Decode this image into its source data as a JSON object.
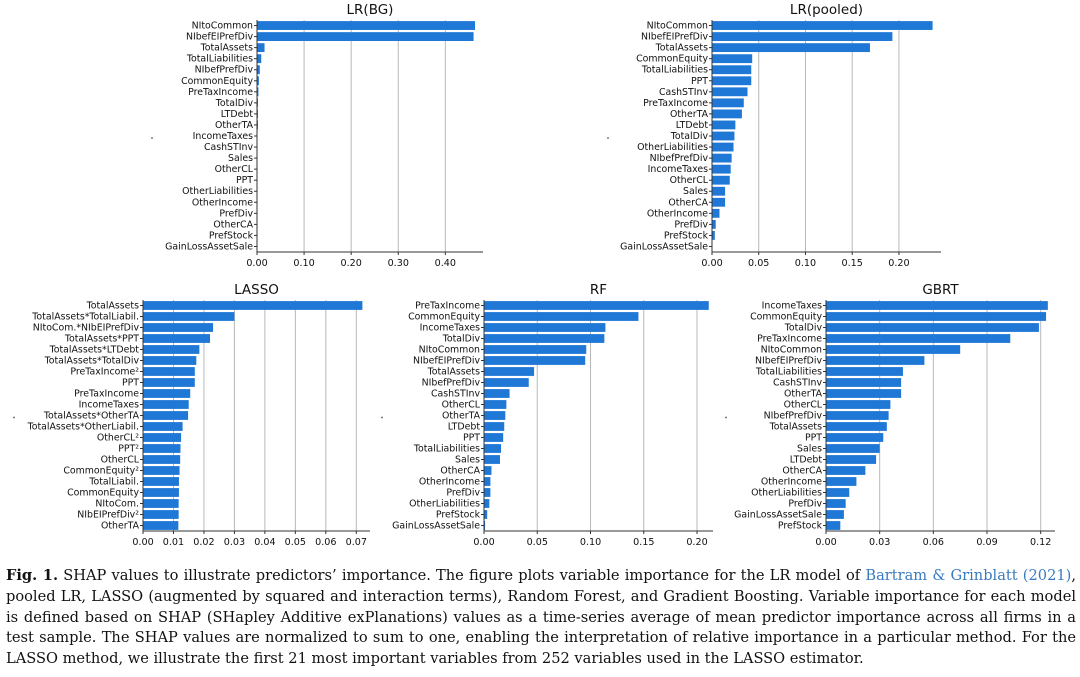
{
  "chart_data": [
    {
      "type": "bar",
      "orientation": "horizontal",
      "title": "LR(BG)",
      "categories": [
        "NItoCommon",
        "NIbefEIPrefDiv",
        "TotalAssets",
        "TotalLiabilities",
        "NIbefPrefDiv",
        "CommonEquity",
        "PreTaxIncome",
        "TotalDiv",
        "LTDebt",
        "OtherTA",
        "IncomeTaxes",
        "CashSTInv",
        "Sales",
        "OtherCL",
        "PPT",
        "OtherLiabilities",
        "OtherIncome",
        "PrefDiv",
        "OtherCA",
        "PrefStock",
        "GainLossAssetSale"
      ],
      "values": [
        0.463,
        0.46,
        0.016,
        0.009,
        0.006,
        0.004,
        0.003,
        0.002,
        0.002,
        0.002,
        0.001,
        0.001,
        0.0,
        0.0,
        0.0,
        0.0,
        0.0,
        0.0,
        0.0,
        0.0,
        0.0
      ],
      "xlim": [
        0,
        0.48
      ],
      "xticks": [
        "0.00",
        "0.10",
        "0.20",
        "0.30",
        "0.40"
      ],
      "xtick_values": [
        0,
        0.1,
        0.2,
        0.3,
        0.4
      ]
    },
    {
      "type": "bar",
      "orientation": "horizontal",
      "title": "LR(pooled)",
      "categories": [
        "NItoCommon",
        "NIbefEIPrefDiv",
        "TotalAssets",
        "CommonEquity",
        "TotalLiabilities",
        "PPT",
        "CashSTInv",
        "PreTaxIncome",
        "OtherTA",
        "LTDebt",
        "TotalDiv",
        "OtherLiabilities",
        "NIbefPrefDiv",
        "IncomeTaxes",
        "OtherCL",
        "Sales",
        "OtherCA",
        "OtherIncome",
        "PrefDiv",
        "PrefStock",
        "GainLossAssetSale"
      ],
      "values": [
        0.236,
        0.193,
        0.169,
        0.043,
        0.042,
        0.042,
        0.038,
        0.034,
        0.032,
        0.025,
        0.024,
        0.023,
        0.021,
        0.02,
        0.019,
        0.014,
        0.014,
        0.008,
        0.004,
        0.003,
        0.0
      ],
      "xlim": [
        0,
        0.245
      ],
      "xticks": [
        "0.00",
        "0.05",
        "0.10",
        "0.15",
        "0.20"
      ],
      "xtick_values": [
        0,
        0.05,
        0.1,
        0.15,
        0.2
      ]
    },
    {
      "type": "bar",
      "orientation": "horizontal",
      "title": "LASSO",
      "categories": [
        "TotalAssets",
        "TotalAssets*TotalLiabil.",
        "NItoCom.*NIbEIPrefDiv",
        "TotalAssets*PPT",
        "TotalAssets*LTDebt",
        "TotalAssets*TotalDiv",
        "PreTaxIncome²",
        "PPT",
        "PreTaxIncome",
        "IncomeTaxes",
        "TotalAssets*OtherTA",
        "TotalAssets*OtherLiabil.",
        "OtherCL²",
        "PPT²",
        "OtherCL",
        "CommonEquity²",
        "TotalLiabil.",
        "CommonEquity",
        "NItoCom.",
        "NIbEIPrefDiv²",
        "OtherTA"
      ],
      "values": [
        0.072,
        0.03,
        0.023,
        0.022,
        0.0185,
        0.0175,
        0.017,
        0.017,
        0.0155,
        0.015,
        0.0148,
        0.013,
        0.0125,
        0.0123,
        0.0122,
        0.012,
        0.0118,
        0.0118,
        0.0117,
        0.0117,
        0.0116
      ],
      "xlim": [
        0,
        0.0745
      ],
      "xticks": [
        "0.00",
        "0.01",
        "0.02",
        "0.03",
        "0.04",
        "0.05",
        "0.06",
        "0.07"
      ],
      "xtick_values": [
        0,
        0.01,
        0.02,
        0.03,
        0.04,
        0.05,
        0.06,
        0.07
      ]
    },
    {
      "type": "bar",
      "orientation": "horizontal",
      "title": "RF",
      "categories": [
        "PreTaxIncome",
        "CommonEquity",
        "IncomeTaxes",
        "TotalDiv",
        "NItoCommon",
        "NIbefEIPrefDiv",
        "TotalAssets",
        "NIbefPrefDiv",
        "CashSTInv",
        "OtherCL",
        "OtherTA",
        "LTDebt",
        "PPT",
        "TotalLiabilities",
        "Sales",
        "OtherCA",
        "OtherIncome",
        "PrefDiv",
        "OtherLiabilities",
        "PrefStock",
        "GainLossAssetSale"
      ],
      "values": [
        0.211,
        0.145,
        0.114,
        0.113,
        0.096,
        0.095,
        0.047,
        0.042,
        0.024,
        0.021,
        0.02,
        0.019,
        0.018,
        0.016,
        0.015,
        0.007,
        0.006,
        0.006,
        0.005,
        0.003,
        0.001
      ],
      "xlim": [
        0,
        0.215
      ],
      "xticks": [
        "0.00",
        "0.05",
        "0.10",
        "0.15",
        "0.20"
      ],
      "xtick_values": [
        0,
        0.05,
        0.1,
        0.15,
        0.2
      ]
    },
    {
      "type": "bar",
      "orientation": "horizontal",
      "title": "GBRT",
      "categories": [
        "IncomeTaxes",
        "CommonEquity",
        "TotalDiv",
        "PreTaxIncome",
        "NItoCommon",
        "NIbefEIPrefDiv",
        "TotalLiabilities",
        "CashSTInv",
        "OtherTA",
        "OtherCL",
        "NIbefPrefDiv",
        "TotalAssets",
        "PPT",
        "Sales",
        "LTDebt",
        "OtherCA",
        "OtherIncome",
        "OtherLiabilities",
        "PrefDiv",
        "GainLossAssetSale",
        "PrefStock"
      ],
      "values": [
        0.124,
        0.123,
        0.119,
        0.103,
        0.075,
        0.055,
        0.043,
        0.042,
        0.042,
        0.036,
        0.035,
        0.034,
        0.032,
        0.03,
        0.028,
        0.022,
        0.017,
        0.013,
        0.011,
        0.01,
        0.008
      ],
      "xlim": [
        0,
        0.128
      ],
      "xticks": [
        "0.00",
        "0.03",
        "0.06",
        "0.09",
        "0.12"
      ],
      "xtick_values": [
        0,
        0.03,
        0.06,
        0.09,
        0.12
      ]
    }
  ],
  "caption": {
    "label": "Fig. 1.",
    "text_before_ref": " SHAP values to illustrate predictors’ importance. The figure plots variable importance for the LR model of ",
    "reference": "Bartram & Grinblatt (2021)",
    "text_after_ref": ", pooled LR, LASSO (augmented by squared and interaction terms), Random Forest, and Gradient Boosting. Variable importance for each model is defined based on SHAP (SHapley Additive exPlanations) values as a time-series average of mean predictor importance across all firms in a test sample. The SHAP values are normalized to sum to one, enabling the interpretation of relative importance in a particular method. For the LASSO method, we illustrate the first 21 most important variables from 252 variables used in the LASSO estimator."
  },
  "colors": {
    "bar": "#1f77d6",
    "grid": "#b8b8b8",
    "axis": "#333333"
  }
}
